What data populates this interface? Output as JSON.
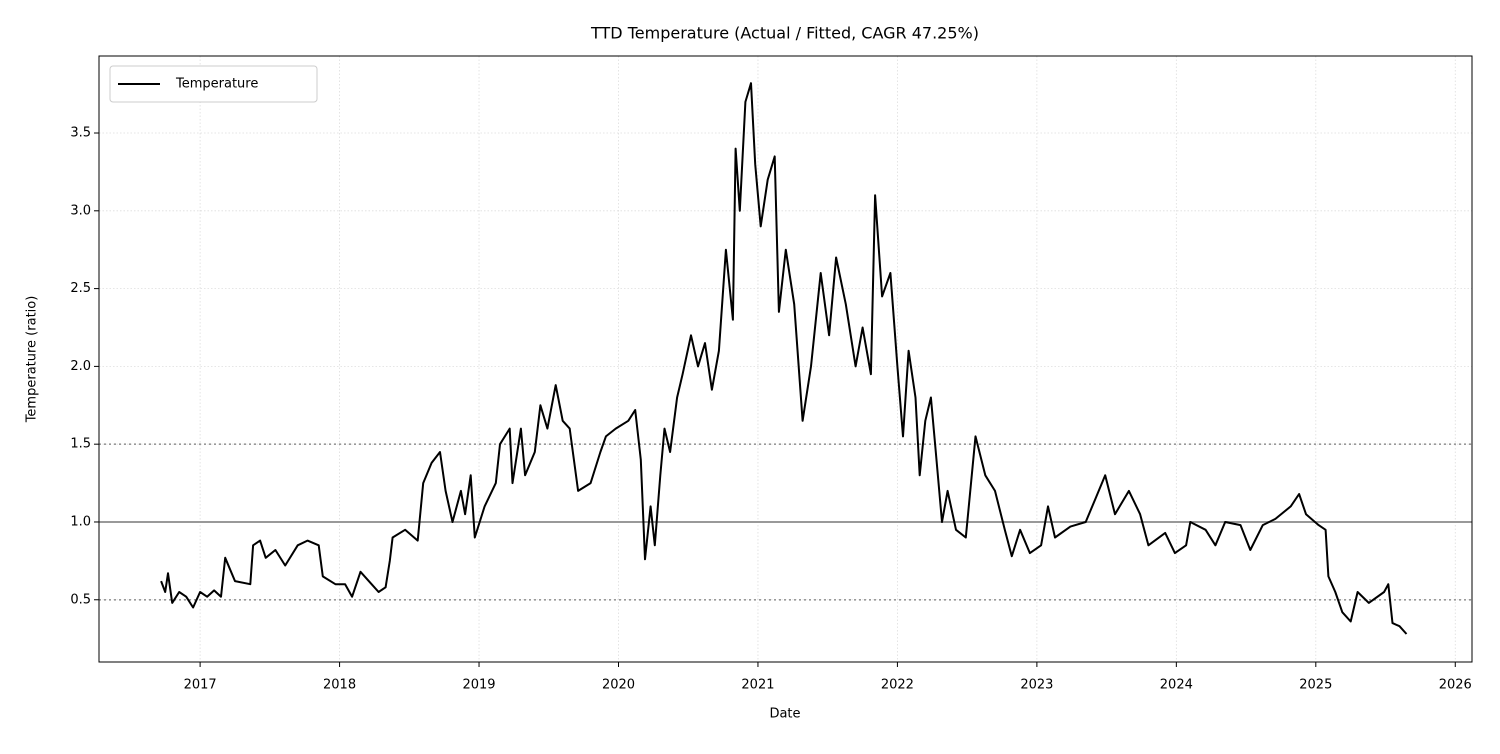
{
  "chart_data": {
    "type": "line",
    "title": "TTD Temperature (Actual / Fitted, CAGR 47.25%)",
    "x_label": "Date",
    "y_label": "Temperature (ratio)",
    "xlim": [
      2016.275,
      2026.12
    ],
    "ylim": [
      0.1,
      3.995
    ],
    "xticks": [
      2017,
      2018,
      2019,
      2020,
      2021,
      2022,
      2023,
      2024,
      2025,
      2026
    ],
    "yticks": [
      0.5,
      1.0,
      1.5,
      2.0,
      2.5,
      3.0,
      3.5
    ],
    "grid": true,
    "legend": "upper-left",
    "hlines": [
      {
        "value": 1.0,
        "style": "solid",
        "color": "#999999"
      },
      {
        "value": 0.5,
        "style": "dotted",
        "color": "#999999"
      },
      {
        "value": 1.5,
        "style": "dotted",
        "color": "#999999"
      }
    ],
    "x": [
      2016.72,
      2016.75,
      2016.77,
      2016.8,
      2016.85,
      2016.9,
      2016.95,
      2017.0,
      2017.05,
      2017.1,
      2017.15,
      2017.18,
      2017.25,
      2017.36,
      2017.38,
      2017.43,
      2017.47,
      2017.54,
      2017.61,
      2017.7,
      2017.77,
      2017.85,
      2017.88,
      2017.97,
      2018.04,
      2018.09,
      2018.15,
      2018.23,
      2018.28,
      2018.33,
      2018.36,
      2018.38,
      2018.47,
      2018.56,
      2018.6,
      2018.66,
      2018.72,
      2018.76,
      2018.81,
      2018.87,
      2018.9,
      2018.94,
      2018.97,
      2019.04,
      2019.12,
      2019.15,
      2019.22,
      2019.24,
      2019.3,
      2019.33,
      2019.4,
      2019.44,
      2019.49,
      2019.55,
      2019.6,
      2019.65,
      2019.71,
      2019.8,
      2019.87,
      2019.91,
      2019.98,
      2020.07,
      2020.12,
      2020.16,
      2020.19,
      2020.23,
      2020.26,
      2020.3,
      2020.33,
      2020.37,
      2020.42,
      2020.46,
      2020.52,
      2020.57,
      2020.62,
      2020.67,
      2020.72,
      2020.77,
      2020.82,
      2020.84,
      2020.87,
      2020.91,
      2020.95,
      2020.98,
      2021.02,
      2021.07,
      2021.12,
      2021.15,
      2021.2,
      2021.26,
      2021.32,
      2021.38,
      2021.45,
      2021.51,
      2021.56,
      2021.63,
      2021.7,
      2021.75,
      2021.81,
      2021.84,
      2021.89,
      2021.95,
      2022.0,
      2022.04,
      2022.08,
      2022.13,
      2022.16,
      2022.2,
      2022.24,
      2022.27,
      2022.32,
      2022.36,
      2022.42,
      2022.49,
      2022.56,
      2022.63,
      2022.7,
      2022.77,
      2022.82,
      2022.88,
      2022.95,
      2023.03,
      2023.08,
      2023.13,
      2023.24,
      2023.35,
      2023.42,
      2023.49,
      2023.56,
      2023.66,
      2023.74,
      2023.8,
      2023.92,
      2023.99,
      2024.07,
      2024.1,
      2024.21,
      2024.28,
      2024.35,
      2024.46,
      2024.53,
      2024.62,
      2024.71,
      2024.82,
      2024.88,
      2024.93,
      2025.02,
      2025.07,
      2025.09,
      2025.14,
      2025.19,
      2025.25,
      2025.3,
      2025.38,
      2025.49,
      2025.52,
      2025.55,
      2025.6,
      2025.65
    ],
    "series": [
      {
        "name": "Temperature",
        "color": "#000000",
        "values": [
          0.62,
          0.55,
          0.67,
          0.48,
          0.55,
          0.52,
          0.45,
          0.55,
          0.52,
          0.56,
          0.52,
          0.77,
          0.62,
          0.6,
          0.85,
          0.88,
          0.77,
          0.82,
          0.72,
          0.85,
          0.88,
          0.85,
          0.65,
          0.6,
          0.6,
          0.52,
          0.68,
          0.6,
          0.55,
          0.58,
          0.75,
          0.9,
          0.95,
          0.88,
          1.25,
          1.38,
          1.45,
          1.2,
          1.0,
          1.2,
          1.05,
          1.3,
          0.9,
          1.1,
          1.25,
          1.5,
          1.6,
          1.25,
          1.6,
          1.3,
          1.45,
          1.75,
          1.6,
          1.88,
          1.65,
          1.6,
          1.2,
          1.25,
          1.45,
          1.55,
          1.6,
          1.65,
          1.72,
          1.4,
          0.76,
          1.1,
          0.85,
          1.3,
          1.6,
          1.45,
          1.8,
          1.95,
          2.2,
          2.0,
          2.15,
          1.85,
          2.1,
          2.75,
          2.3,
          3.4,
          3.0,
          3.7,
          3.82,
          3.3,
          2.9,
          3.2,
          3.35,
          2.35,
          2.75,
          2.4,
          1.65,
          2.0,
          2.6,
          2.2,
          2.7,
          2.4,
          2.0,
          2.25,
          1.95,
          3.1,
          2.45,
          2.6,
          2.0,
          1.55,
          2.1,
          1.8,
          1.3,
          1.65,
          1.8,
          1.5,
          1.0,
          1.2,
          0.95,
          0.9,
          1.55,
          1.3,
          1.2,
          0.95,
          0.78,
          0.95,
          0.8,
          0.85,
          1.1,
          0.9,
          0.97,
          1.0,
          1.15,
          1.3,
          1.05,
          1.2,
          1.05,
          0.85,
          0.93,
          0.8,
          0.85,
          1.0,
          0.95,
          0.85,
          1.0,
          0.98,
          0.82,
          0.98,
          1.02,
          1.1,
          1.18,
          1.05,
          0.98,
          0.95,
          0.65,
          0.55,
          0.42,
          0.36,
          0.55,
          0.48,
          0.55,
          0.6,
          0.35,
          0.33,
          0.28
        ]
      }
    ]
  }
}
